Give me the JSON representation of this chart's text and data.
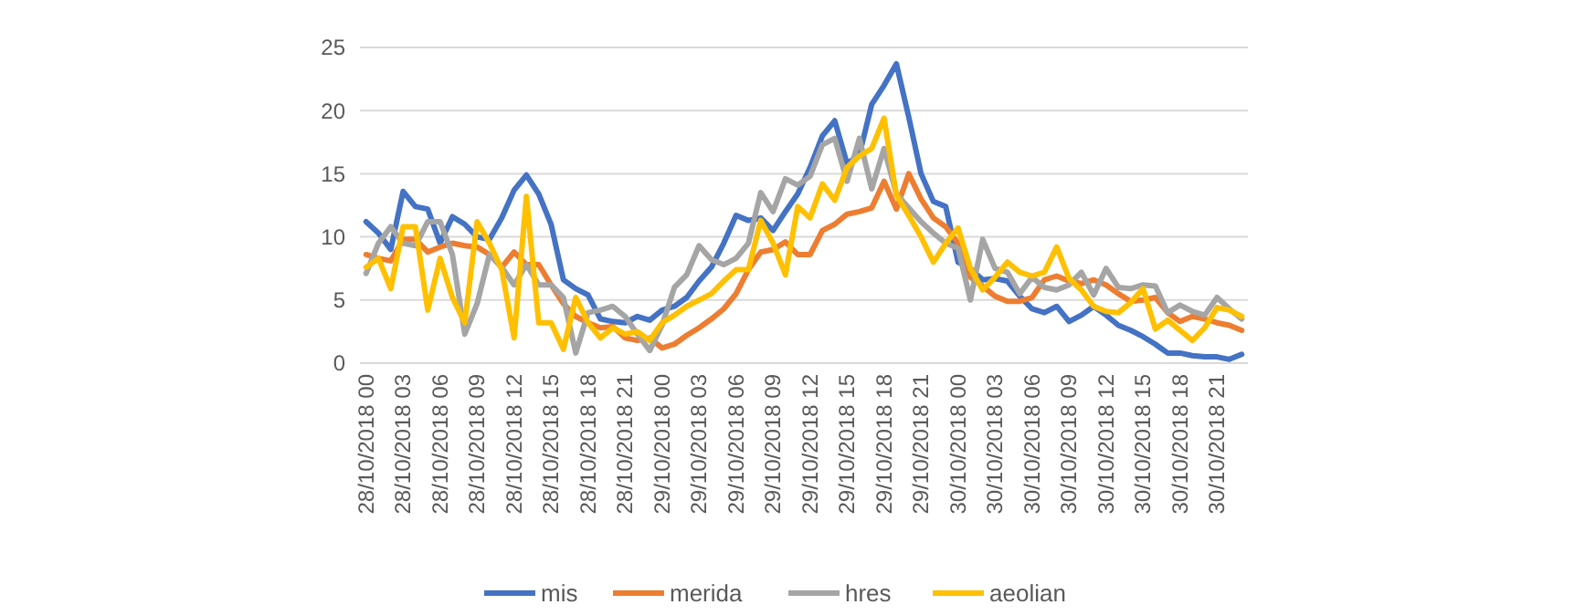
{
  "chart_data": {
    "type": "line",
    "categories": [
      "28/10/2018 00",
      null,
      null,
      "28/10/2018 03",
      null,
      null,
      "28/10/2018 06",
      null,
      null,
      "28/10/2018 09",
      null,
      null,
      "28/10/2018 12",
      null,
      null,
      "28/10/2018 15",
      null,
      null,
      "28/10/2018 18",
      null,
      null,
      "28/10/2018 21",
      null,
      null,
      "29/10/2018 00",
      null,
      null,
      "29/10/2018 03",
      null,
      null,
      "29/10/2018 06",
      null,
      null,
      "29/10/2018 09",
      null,
      null,
      "29/10/2018 12",
      null,
      null,
      "29/10/2018 15",
      null,
      null,
      "29/10/2018 18",
      null,
      null,
      "29/10/2018 21",
      null,
      null,
      "30/10/2018 00",
      null,
      null,
      "30/10/2018 03",
      null,
      null,
      "30/10/2018 06",
      null,
      null,
      "30/10/2018 09",
      null,
      null,
      "30/10/2018 12",
      null,
      null,
      "30/10/2018 15",
      null,
      null,
      "30/10/2018 18",
      null,
      null,
      "30/10/2018 21",
      null,
      null
    ],
    "series": [
      {
        "name": "mis",
        "color": "#4472c4",
        "values": [
          11.2,
          10.3,
          9,
          13.6,
          12.4,
          12.2,
          9.5,
          11.6,
          11,
          10,
          9.8,
          11.5,
          13.7,
          14.9,
          13.4,
          11,
          6.6,
          5.9,
          5.4,
          3.5,
          3.3,
          3.2,
          3.7,
          3.4,
          4.2,
          4.5,
          5.2,
          6.5,
          7.6,
          9.5,
          11.7,
          11.3,
          11.5,
          10.5,
          12,
          13.4,
          15.5,
          18,
          19.2,
          15.8,
          16.5,
          20.5,
          22,
          23.7,
          19.5,
          15,
          12.8,
          12.4,
          8,
          7.5,
          6.6,
          6.7,
          6.5,
          5.3,
          4.3,
          4,
          4.5,
          3.3,
          3.8,
          4.5,
          3.8,
          3,
          2.6,
          2.1,
          1.5,
          0.8,
          0.8,
          0.6,
          0.5,
          0.5,
          0.3,
          0.7
        ]
      },
      {
        "name": "merida",
        "color": "#ed7d31",
        "values": [
          8.6,
          8.3,
          8.1,
          9.8,
          9.8,
          8.8,
          9.2,
          9.5,
          9.3,
          9.2,
          8.6,
          7.6,
          8.8,
          7.8,
          7.8,
          6.2,
          4.7,
          3.7,
          3.2,
          2.8,
          2.9,
          2,
          1.8,
          2,
          1.2,
          1.5,
          2.2,
          2.8,
          3.5,
          4.3,
          5.5,
          7.4,
          8.8,
          9,
          9.6,
          8.6,
          8.6,
          10.5,
          11,
          11.8,
          12,
          12.3,
          14.4,
          12.2,
          15,
          13,
          11.5,
          10.8,
          9.5,
          6.8,
          6.1,
          5.3,
          4.9,
          4.9,
          5.2,
          6.6,
          6.9,
          6.5,
          6.3,
          6.6,
          6.2,
          5.5,
          4.9,
          5,
          5.2,
          4,
          3.3,
          3.7,
          3.5,
          3.2,
          3,
          2.6
        ]
      },
      {
        "name": "hres",
        "color": "#a5a5a5",
        "values": [
          7.1,
          9.5,
          10.8,
          9.5,
          9.3,
          11.2,
          11.2,
          8.6,
          2.3,
          4.7,
          8.6,
          7.6,
          6.2,
          7.8,
          6.2,
          6.2,
          5.2,
          0.8,
          4,
          4.2,
          4.5,
          3.7,
          2.3,
          1,
          3,
          6,
          7,
          9.3,
          8.2,
          7.8,
          8.3,
          9.5,
          13.5,
          12,
          14.6,
          14.1,
          14.8,
          17.3,
          17.8,
          14.4,
          17.8,
          13.8,
          17,
          13.4,
          12.3,
          11.2,
          10.3,
          9.5,
          9.1,
          5,
          9.8,
          7.5,
          7.2,
          5.5,
          6.8,
          6,
          5.8,
          6.2,
          7.2,
          5.4,
          7.5,
          6,
          5.9,
          6.2,
          6.1,
          4,
          4.6,
          4.1,
          3.8,
          5.2,
          4.3,
          3.5
        ]
      },
      {
        "name": "aeolian",
        "color": "#ffc000",
        "values": [
          7.6,
          8.3,
          5.9,
          10.8,
          10.8,
          4.2,
          8.3,
          5.2,
          3.2,
          11.2,
          9.5,
          7.4,
          2,
          13.2,
          3.2,
          3.2,
          1.1,
          5.2,
          3.2,
          2,
          2.8,
          2.3,
          2.5,
          1.8,
          3.2,
          3.8,
          4.5,
          5,
          5.5,
          6.5,
          7.4,
          7.4,
          11.3,
          9.5,
          7,
          12.4,
          11.5,
          14.2,
          12.9,
          15.5,
          16.4,
          17,
          19.4,
          13.3,
          11.7,
          10,
          8,
          9.5,
          10.7,
          7.5,
          5.8,
          6.8,
          8,
          7.2,
          6.9,
          7.2,
          9.2,
          6.7,
          5.8,
          4.5,
          4.1,
          4,
          4.8,
          5.9,
          2.7,
          3.4,
          2.6,
          1.8,
          2.8,
          4.4,
          4.2,
          3.7
        ]
      }
    ],
    "ylim": [
      0,
      25
    ],
    "yticks": [
      0,
      5,
      10,
      15,
      20,
      25
    ],
    "grid": "y",
    "legend": "bottom",
    "marker": "none",
    "line_style": "solid"
  }
}
